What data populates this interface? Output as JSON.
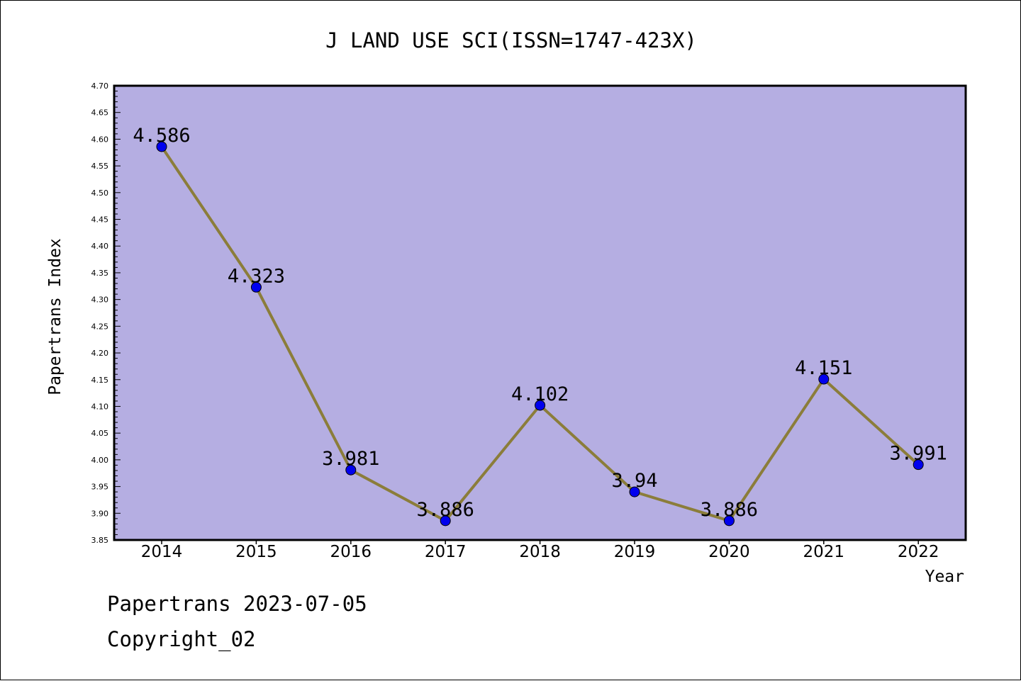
{
  "chart_data": {
    "type": "line",
    "title": "J LAND USE SCI(ISSN=1747-423X)",
    "xlabel": "Year",
    "ylabel": "Papertrans Index",
    "categories": [
      "2014",
      "2015",
      "2016",
      "2017",
      "2018",
      "2019",
      "2020",
      "2021",
      "2022"
    ],
    "series": [
      {
        "values": [
          4.586,
          4.323,
          3.981,
          3.886,
          4.102,
          3.94,
          3.886,
          4.151,
          3.991
        ],
        "labels": [
          "4.586",
          "4.323",
          "3.981",
          "3.886",
          "4.102",
          "3.94",
          "3.886",
          "4.151",
          "3.991"
        ]
      }
    ],
    "ylim": [
      3.85,
      4.7
    ],
    "yticks": [
      "3.85",
      "3.90",
      "3.95",
      "4.00",
      "4.05",
      "4.10",
      "4.15",
      "4.20",
      "4.25",
      "4.30",
      "4.35",
      "4.40",
      "4.45",
      "4.50",
      "4.55",
      "4.60",
      "4.65",
      "4.70"
    ],
    "grid": false,
    "colors": {
      "plot_background": "#b5aee2",
      "line": "#8b7d3a",
      "marker": "#0000ee",
      "axis": "#000000"
    }
  },
  "footer": {
    "source": "Papertrans 2023-07-05",
    "copyright": "Copyright_02"
  }
}
